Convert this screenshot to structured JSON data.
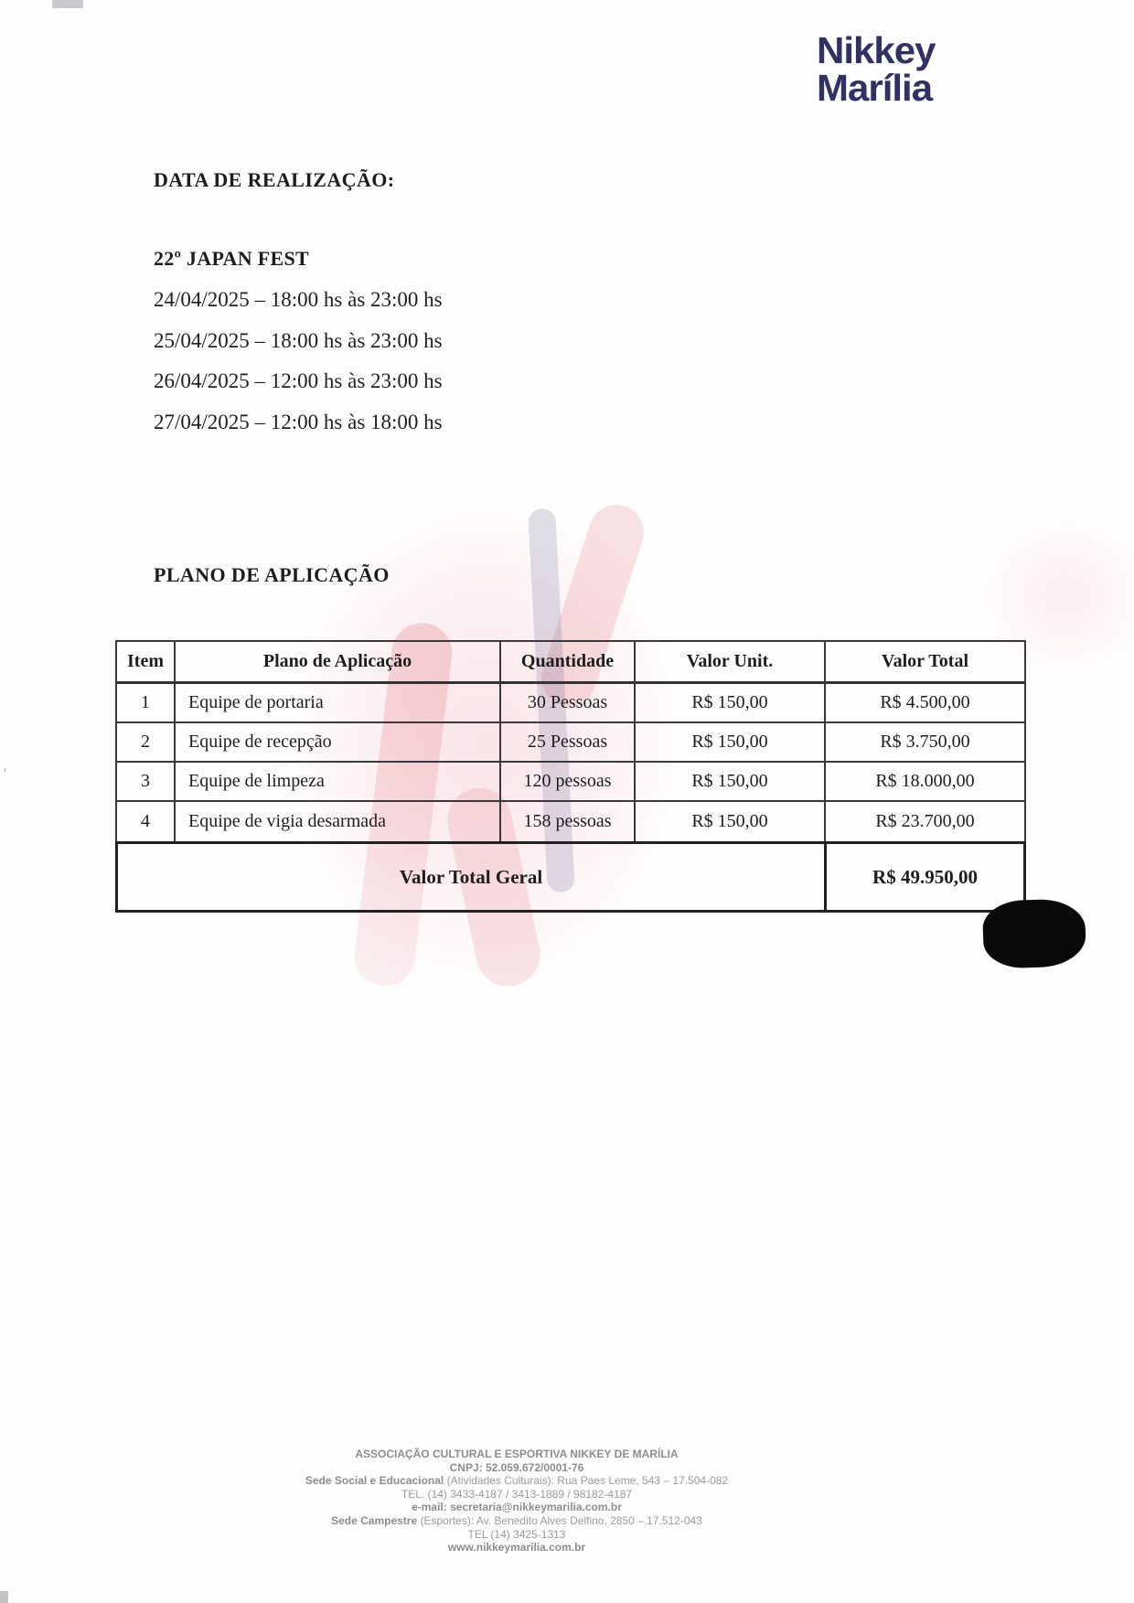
{
  "logo": {
    "line1": "Nikkey",
    "line2": "Marília"
  },
  "headings": {
    "date_section": "DATA DE REALIZAÇÃO:",
    "plan_section": "PLANO DE APLICAÇÃO"
  },
  "event": {
    "name": "22º JAPAN FEST",
    "dates": [
      "24/04/2025 – 18:00 hs às 23:00 hs",
      "25/04/2025 – 18:00 hs às 23:00 hs",
      "26/04/2025 – 12:00 hs às 23:00 hs",
      "27/04/2025 – 12:00 hs às 18:00 hs"
    ]
  },
  "table": {
    "headers": [
      "Item",
      "Plano de Aplicação",
      "Quantidade",
      "Valor Unit.",
      "Valor Total"
    ],
    "rows": [
      {
        "item": "1",
        "plano": "Equipe de portaria",
        "quantidade": "30 Pessoas",
        "valor_unit": "R$ 150,00",
        "valor_total": "R$ 4.500,00"
      },
      {
        "item": "2",
        "plano": "Equipe de recepção",
        "quantidade": "25 Pessoas",
        "valor_unit": "R$ 150,00",
        "valor_total": "R$ 3.750,00"
      },
      {
        "item": "3",
        "plano": "Equipe de limpeza",
        "quantidade": "120 pessoas",
        "valor_unit": "R$ 150,00",
        "valor_total": "R$ 18.000,00"
      },
      {
        "item": "4",
        "plano": "Equipe de vigia desarmada",
        "quantidade": "158 pessoas",
        "valor_unit": "R$ 150,00",
        "valor_total": "R$ 23.700,00"
      }
    ],
    "total": {
      "label": "Valor Total Geral",
      "value": "R$ 49.950,00"
    }
  },
  "footer": {
    "org": "ASSOCIAÇÃO CULTURAL E ESPORTIVA NIKKEY DE MARÍLIA",
    "cnpj": "CNPJ: 52.059.672/0001-76",
    "sede_social_label": "Sede Social e Educacional",
    "sede_social_rest": " (Atividades Culturais): Rua Paes Leme, 543 – 17.504-082",
    "tel1": "TEL. (14) 3433-4187 / 3413-1889 / 98182-4187",
    "email": "e-mail: secretaria@nikkeymarilia.com.br",
    "sede_campestre_label": "Sede Campestre",
    "sede_campestre_rest": " (Esportes): Av. Benedito Alves Delfino, 2850 – 17.512-043",
    "tel2": "TEL (14) 3425-1313",
    "site": "www.nikkeymarilia.com.br"
  },
  "colors": {
    "logo_navy": "#2f3263",
    "watermark_red": "#d63c4b",
    "watermark_navy": "#2d3773",
    "redaction_black": "#0a0a0a",
    "table_border": "#3a3a3a",
    "footer_gray": "#9b9b9b"
  }
}
